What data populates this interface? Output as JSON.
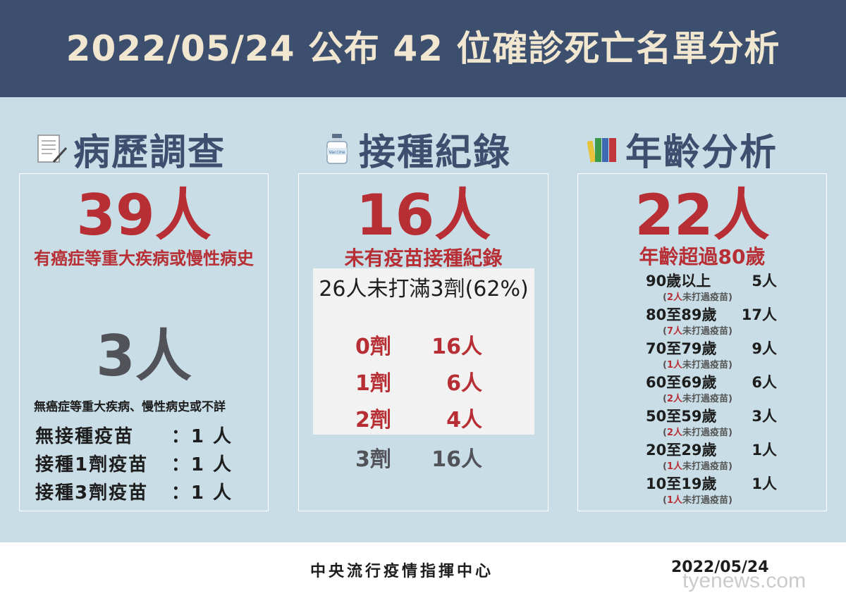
{
  "header": {
    "title": "2022/05/24 公布 42 位確診死亡名單分析"
  },
  "columns": {
    "history": {
      "heading": "病歷調查",
      "icon": "document-pen-icon",
      "main_number": "39人",
      "main_desc": "有癌症等重大疾病或慢性病史",
      "second_number": "3人",
      "second_desc": "無癌症等重大疾病、慢性病史或不詳",
      "vax_lines": [
        {
          "label": "無接種疫苗",
          "value": "：1 人"
        },
        {
          "label": "接種1劑疫苗",
          "value": "：1 人"
        },
        {
          "label": "接種3劑疫苗",
          "value": "：1 人"
        }
      ]
    },
    "vaccination": {
      "heading": "接種紀錄",
      "icon": "vaccine-vial-icon",
      "main_number": "16人",
      "main_desc": "未有疫苗接種紀錄",
      "box_title": "26人未打滿3劑(62%)",
      "doses": [
        {
          "dose": "0劑",
          "count": "16人",
          "color": "#b72f34"
        },
        {
          "dose": "1劑",
          "count": "6人",
          "color": "#b72f34"
        },
        {
          "dose": "2劑",
          "count": "4人",
          "color": "#b72f34"
        },
        {
          "dose": "3劑",
          "count": "16人",
          "color": "#525259"
        }
      ]
    },
    "age": {
      "heading": "年齡分析",
      "icon": "books-icon",
      "main_number": "22人",
      "main_desc": "年齡超過80歲",
      "groups": [
        {
          "range": "90歲以上",
          "count": "5人",
          "note_count": "2人",
          "note_text": "未打過疫苗"
        },
        {
          "range": "80至89歲",
          "count": "17人",
          "note_count": "7人",
          "note_text": "未打過疫苗"
        },
        {
          "range": "70至79歲",
          "count": "9人",
          "note_count": "1人",
          "note_text": "未打過疫苗"
        },
        {
          "range": "60至69歲",
          "count": "6人",
          "note_count": "2人",
          "note_text": "未打過疫苗"
        },
        {
          "range": "50至59歲",
          "count": "3人",
          "note_count": "2人",
          "note_text": "未打過疫苗"
        },
        {
          "range": "20至29歲",
          "count": "1人",
          "note_count": "1人",
          "note_text": "未打過疫苗"
        },
        {
          "range": "10至19歲",
          "count": "1人",
          "note_count": "1人",
          "note_text": "未打過疫苗"
        }
      ]
    }
  },
  "footer": {
    "org": "中央流行疫情指揮中心",
    "date": "2022/05/24"
  },
  "watermark": "tyenews.com",
  "colors": {
    "header": "#3d4f6e",
    "title": "#f1e6cf",
    "accent_red": "#b72f34",
    "panel_bg": "#c9dde6",
    "gray_number": "#525259"
  }
}
